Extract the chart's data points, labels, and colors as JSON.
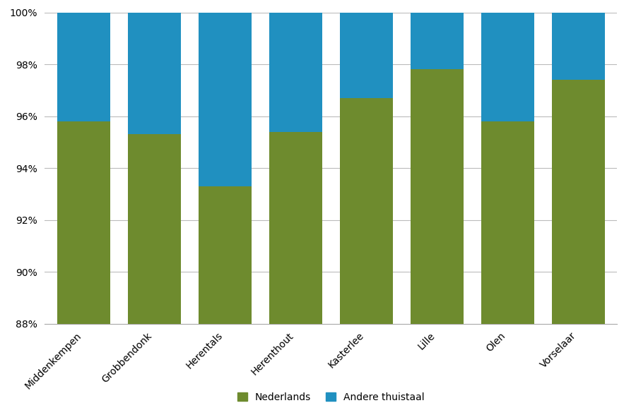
{
  "categories": [
    "Middenkempen",
    "Grobbendonk",
    "Herentals",
    "Herenthout",
    "Kasterlee",
    "Lille",
    "Olen",
    "Vorselaar"
  ],
  "nederlands": [
    95.8,
    95.3,
    93.3,
    95.4,
    96.7,
    97.8,
    95.8,
    97.4
  ],
  "andere": [
    4.2,
    4.7,
    6.7,
    4.6,
    3.3,
    2.2,
    4.2,
    2.6
  ],
  "color_nederlands": "#6e8b2e",
  "color_andere": "#2090c0",
  "ylim_min": 88,
  "ylim_max": 100,
  "yticks": [
    88,
    90,
    92,
    94,
    96,
    98,
    100
  ],
  "ytick_labels": [
    "88%",
    "90%",
    "92%",
    "94%",
    "96%",
    "98%",
    "100%"
  ],
  "legend_nederlands": "Nederlands",
  "legend_andere": "Andere thuistaal",
  "background_color": "#ffffff",
  "bar_width": 0.75
}
